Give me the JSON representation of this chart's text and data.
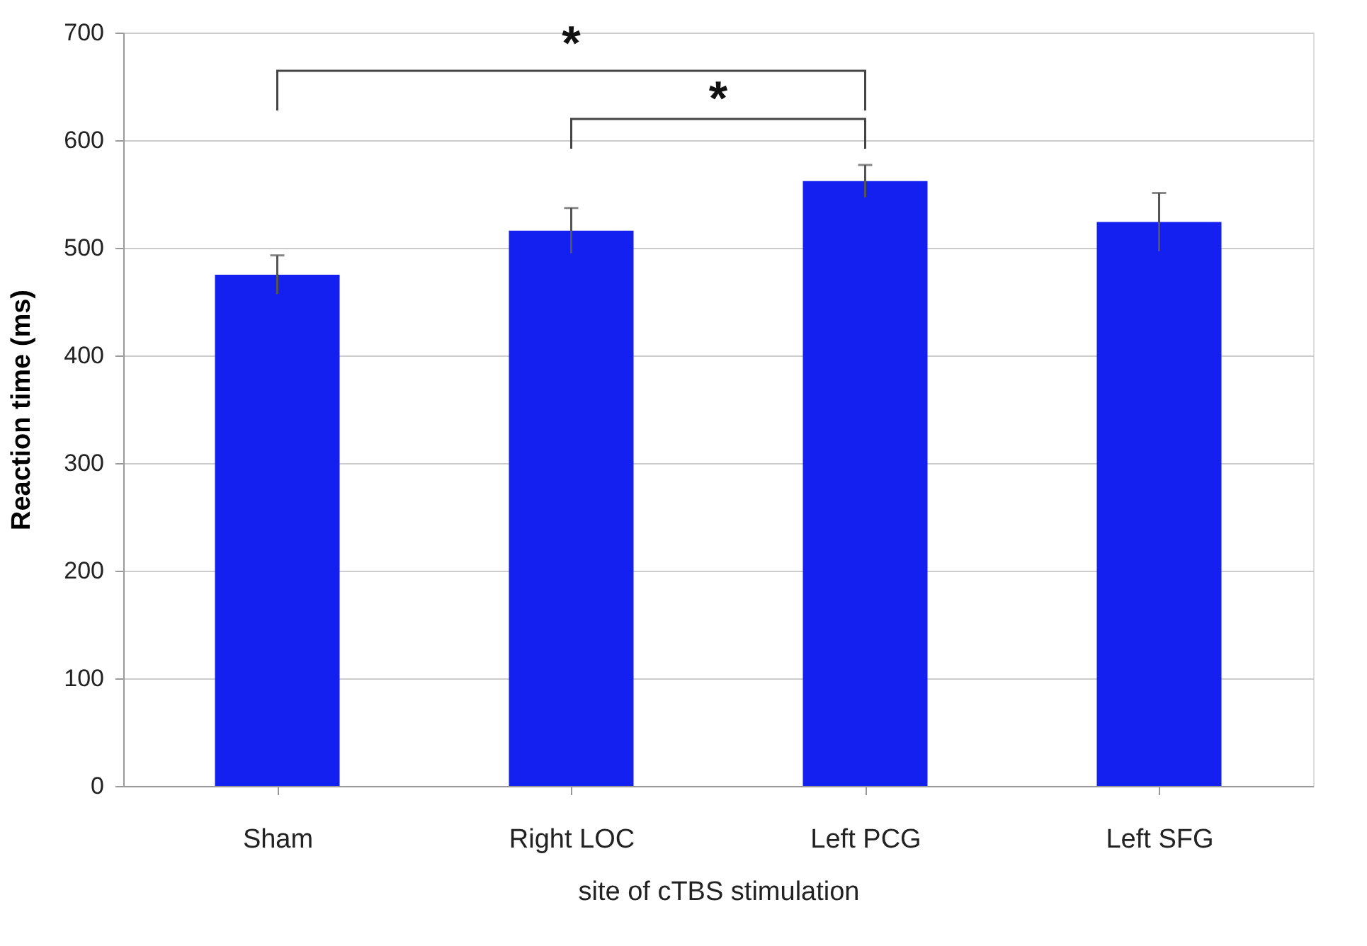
{
  "chart_data": {
    "type": "bar",
    "xlabel": "site of cTBS stimulation",
    "ylabel": "Reaction time (ms)",
    "categories": [
      "Sham",
      "Right LOC",
      "Left PCG",
      "Left SFG"
    ],
    "values": [
      475,
      516,
      562,
      524
    ],
    "errors": [
      18,
      21,
      15,
      27
    ],
    "color": "#1320f0",
    "ylim": [
      0,
      700
    ],
    "yticks": [
      0,
      100,
      200,
      300,
      400,
      500,
      600,
      700
    ],
    "grid": "y",
    "annotations": [
      "*",
      "*"
    ]
  }
}
